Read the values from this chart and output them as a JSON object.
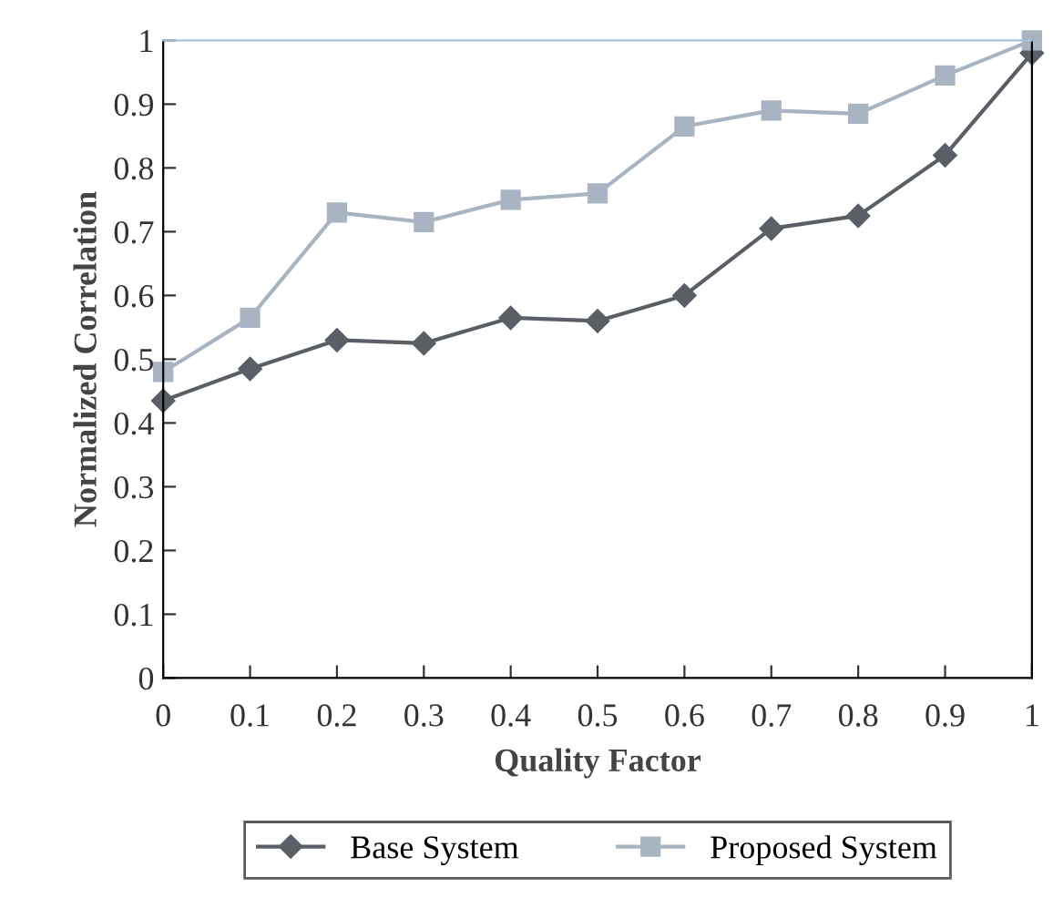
{
  "chart_data": {
    "type": "line",
    "xlabel": "Quality Factor",
    "ylabel": "Normalized Correlation",
    "x": [
      0,
      0.1,
      0.2,
      0.3,
      0.4,
      0.5,
      0.6,
      0.7,
      0.8,
      0.9,
      1
    ],
    "series": [
      {
        "name": "Base System",
        "color": "#5a5f66",
        "marker": "diamond",
        "values": [
          0.435,
          0.485,
          0.53,
          0.525,
          0.565,
          0.56,
          0.6,
          0.705,
          0.725,
          0.82,
          0.98
        ]
      },
      {
        "name": "Proposed System",
        "color": "#a9b4c2",
        "marker": "square",
        "values": [
          0.48,
          0.565,
          0.73,
          0.715,
          0.75,
          0.76,
          0.865,
          0.89,
          0.885,
          0.945,
          1.0
        ]
      }
    ],
    "xlim": [
      0,
      1
    ],
    "ylim": [
      0,
      1
    ],
    "xticks": [
      0,
      0.1,
      0.2,
      0.3,
      0.4,
      0.5,
      0.6,
      0.7,
      0.8,
      0.9,
      1
    ],
    "yticks": [
      0,
      0.1,
      0.2,
      0.3,
      0.4,
      0.5,
      0.6,
      0.7,
      0.8,
      0.9,
      1
    ],
    "grid": false,
    "legend": "bottom",
    "line_style": "solid"
  }
}
